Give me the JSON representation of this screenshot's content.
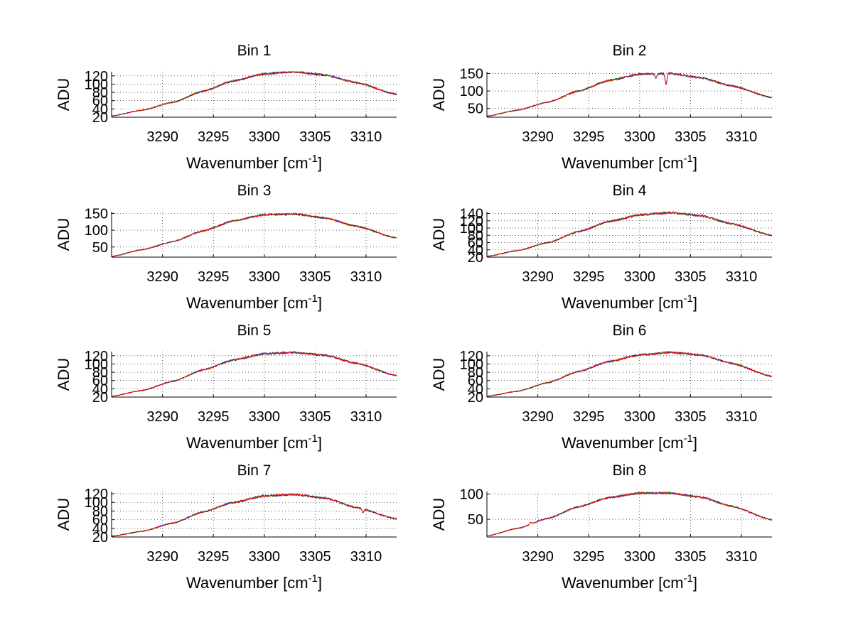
{
  "figure": {
    "background": "#ffffff",
    "series_colors": [
      "#0000ff",
      "#008000",
      "#ff0000"
    ],
    "grid": "dotted",
    "legend": "none"
  },
  "chart_data": [
    {
      "type": "line",
      "title": "Bin 1",
      "xlabel": "Wavenumber [cm",
      "xlabel_sup": "-1",
      "xlabel_close": "]",
      "ylabel": "ADU",
      "xlim": [
        3285,
        3313
      ],
      "ylim": [
        20,
        130
      ],
      "xticks": [
        3290,
        3295,
        3300,
        3305,
        3310
      ],
      "yticks": [
        20,
        40,
        60,
        80,
        100,
        120
      ],
      "ytick_labels": [
        "20",
        "40",
        "60",
        "80",
        "100",
        "120"
      ],
      "x": [
        3285,
        3288,
        3291,
        3294,
        3297,
        3300,
        3303,
        3306,
        3309,
        3313
      ],
      "values": [
        23,
        37,
        56,
        83,
        108,
        125,
        130,
        122,
        104,
        75
      ],
      "noise": 2.5
    },
    {
      "type": "line",
      "title": "Bin 2",
      "xlabel": "Wavenumber [cm",
      "xlabel_sup": "-1",
      "xlabel_close": "]",
      "ylabel": "ADU",
      "xlim": [
        3285,
        3313
      ],
      "ylim": [
        25,
        155
      ],
      "xticks": [
        3290,
        3295,
        3300,
        3305,
        3310
      ],
      "yticks": [
        50,
        100,
        150
      ],
      "ytick_labels": [
        "50",
        "100",
        "150"
      ],
      "x": [
        3285,
        3288,
        3291,
        3294,
        3297,
        3300,
        3303,
        3306,
        3309,
        3313
      ],
      "values": [
        28,
        45,
        68,
        100,
        130,
        148,
        150,
        138,
        115,
        81
      ],
      "noise": 3,
      "dips": [
        [
          3302.6,
          118
        ],
        [
          3301.6,
          136
        ]
      ]
    },
    {
      "type": "line",
      "title": "Bin 3",
      "xlabel": "Wavenumber [cm",
      "xlabel_sup": "-1",
      "xlabel_close": "]",
      "ylabel": "ADU",
      "xlim": [
        3285,
        3313
      ],
      "ylim": [
        20,
        155
      ],
      "xticks": [
        3290,
        3295,
        3300,
        3305,
        3310
      ],
      "yticks": [
        50,
        100,
        150
      ],
      "ytick_labels": [
        "50",
        "100",
        "150"
      ],
      "x": [
        3285,
        3288,
        3291,
        3294,
        3297,
        3300,
        3303,
        3306,
        3309,
        3313
      ],
      "values": [
        22,
        42,
        66,
        98,
        128,
        146,
        148,
        136,
        112,
        77
      ],
      "noise": 3
    },
    {
      "type": "line",
      "title": "Bin 4",
      "xlabel": "Wavenumber [cm",
      "xlabel_sup": "-1",
      "xlabel_close": "]",
      "ylabel": "ADU",
      "xlim": [
        3285,
        3313
      ],
      "ylim": [
        20,
        145
      ],
      "xticks": [
        3290,
        3295,
        3300,
        3305,
        3310
      ],
      "yticks": [
        20,
        40,
        60,
        80,
        100,
        120,
        140
      ],
      "ytick_labels": [
        "20",
        "40",
        "60",
        "80",
        "100",
        "120",
        "140"
      ],
      "x": [
        3285,
        3288,
        3291,
        3294,
        3297,
        3300,
        3303,
        3306,
        3309,
        3313
      ],
      "values": [
        22,
        38,
        60,
        90,
        118,
        136,
        142,
        134,
        112,
        80
      ],
      "noise": 3
    },
    {
      "type": "line",
      "title": "Bin 5",
      "xlabel": "Wavenumber [cm",
      "xlabel_sup": "-1",
      "xlabel_close": "]",
      "ylabel": "ADU",
      "xlim": [
        3285,
        3313
      ],
      "ylim": [
        20,
        130
      ],
      "xticks": [
        3290,
        3295,
        3300,
        3305,
        3310
      ],
      "yticks": [
        20,
        40,
        60,
        80,
        100,
        120
      ],
      "ytick_labels": [
        "20",
        "40",
        "60",
        "80",
        "100",
        "120"
      ],
      "x": [
        3285,
        3288,
        3291,
        3294,
        3297,
        3300,
        3303,
        3306,
        3309,
        3313
      ],
      "values": [
        22,
        36,
        58,
        86,
        110,
        125,
        128,
        121,
        102,
        72
      ],
      "noise": 2.5
    },
    {
      "type": "line",
      "title": "Bin 6",
      "xlabel": "Wavenumber [cm",
      "xlabel_sup": "-1",
      "xlabel_close": "]",
      "ylabel": "ADU",
      "xlim": [
        3285,
        3313
      ],
      "ylim": [
        20,
        130
      ],
      "xticks": [
        3290,
        3295,
        3300,
        3305,
        3310
      ],
      "yticks": [
        20,
        40,
        60,
        80,
        100,
        120
      ],
      "ytick_labels": [
        "20",
        "40",
        "60",
        "80",
        "100",
        "120"
      ],
      "x": [
        3285,
        3288,
        3291,
        3294,
        3297,
        3300,
        3303,
        3306,
        3309,
        3313
      ],
      "values": [
        22,
        34,
        55,
        82,
        106,
        122,
        128,
        122,
        102,
        70
      ],
      "noise": 2.5
    },
    {
      "type": "line",
      "title": "Bin 7",
      "xlabel": "Wavenumber [cm",
      "xlabel_sup": "-1",
      "xlabel_close": "]",
      "ylabel": "ADU",
      "xlim": [
        3285,
        3313
      ],
      "ylim": [
        20,
        125
      ],
      "xticks": [
        3290,
        3295,
        3300,
        3305,
        3310
      ],
      "yticks": [
        20,
        40,
        60,
        80,
        100,
        120
      ],
      "ytick_labels": [
        "20",
        "40",
        "60",
        "80",
        "100",
        "120"
      ],
      "x": [
        3285,
        3288,
        3291,
        3294,
        3297,
        3300,
        3303,
        3306,
        3309,
        3313
      ],
      "values": [
        22,
        33,
        52,
        78,
        100,
        115,
        118,
        110,
        88,
        62
      ],
      "noise": 2.5,
      "dips": [
        [
          3309.7,
          76
        ]
      ]
    },
    {
      "type": "line",
      "title": "Bin 8",
      "xlabel": "Wavenumber [cm",
      "xlabel_sup": "-1",
      "xlabel_close": "]",
      "ylabel": "ADU",
      "xlim": [
        3285,
        3313
      ],
      "ylim": [
        15,
        105
      ],
      "xticks": [
        3290,
        3295,
        3300,
        3305,
        3310
      ],
      "yticks": [
        50,
        100
      ],
      "ytick_labels": [
        "50",
        "100"
      ],
      "x": [
        3285,
        3288,
        3291,
        3294,
        3297,
        3300,
        3303,
        3306,
        3309,
        3313
      ],
      "values": [
        17,
        32,
        52,
        75,
        93,
        102,
        102,
        94,
        76,
        49
      ],
      "noise": 2,
      "dips": [
        [
          3289.3,
          44
        ]
      ]
    }
  ]
}
